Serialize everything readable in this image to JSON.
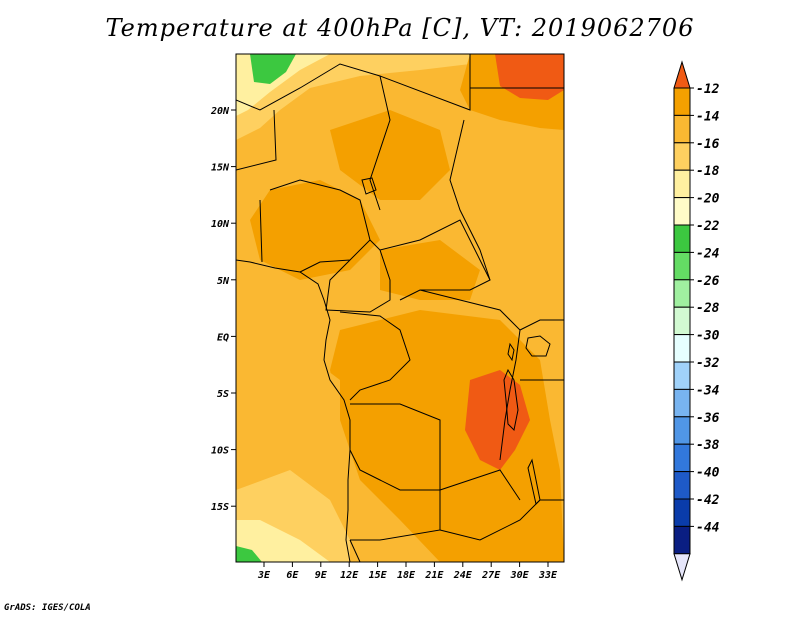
{
  "title": "Temperature at 400hPa [C], VT: 2019062706",
  "credit": "GrADS: IGES/COLA",
  "map": {
    "lon_labels": [
      "3E",
      "6E",
      "9E",
      "12E",
      "15E",
      "18E",
      "21E",
      "24E",
      "27E",
      "30E",
      "33E"
    ],
    "lat_labels": [
      "20N",
      "15N",
      "10N",
      "5N",
      "EQ",
      "5S",
      "10S",
      "15S"
    ]
  },
  "colorbar": {
    "labels": [
      "-12",
      "-14",
      "-16",
      "-18",
      "-20",
      "-22",
      "-24",
      "-26",
      "-28",
      "-30",
      "-32",
      "-34",
      "-36",
      "-38",
      "-40",
      "-42",
      "-44"
    ],
    "colors": [
      "#f05a14",
      "#f4a000",
      "#fab832",
      "#fed060",
      "#fff0a0",
      "#fffcc8",
      "#3cc840",
      "#64dc64",
      "#a0f0a0",
      "#d2fad2",
      "#e6ffff",
      "#a0d2fa",
      "#78b4f0",
      "#5096e6",
      "#3278dc",
      "#1e5ac8",
      "#0a3caa",
      "#0a1e82",
      "#e6e6fa"
    ]
  }
}
